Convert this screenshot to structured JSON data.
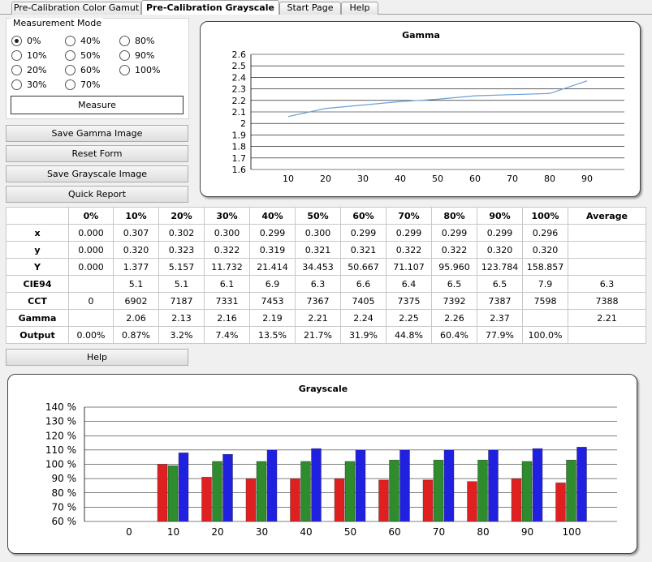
{
  "tabs": [
    "Pre-Calibration Color Gamut",
    "Pre-Calibration Grayscale",
    "Start Page",
    "Help"
  ],
  "active_tab": 1,
  "measurement_mode": {
    "title": "Measurement Mode",
    "options": [
      "0%",
      "10%",
      "20%",
      "30%",
      "40%",
      "50%",
      "60%",
      "70%",
      "80%",
      "90%",
      "100%"
    ],
    "selected": "0%",
    "measure_label": "Measure"
  },
  "buttons": {
    "save_gamma": "Save Gamma Image",
    "reset_form": "Reset Form",
    "save_grayscale": "Save Grayscale Image",
    "quick_report": "Quick Report",
    "help": "Help"
  },
  "table": {
    "columns": [
      "",
      "0%",
      "10%",
      "20%",
      "30%",
      "40%",
      "50%",
      "60%",
      "70%",
      "80%",
      "90%",
      "100%",
      "Average"
    ],
    "rows": [
      [
        "x",
        "0.000",
        "0.307",
        "0.302",
        "0.300",
        "0.299",
        "0.300",
        "0.299",
        "0.299",
        "0.299",
        "0.299",
        "0.296",
        ""
      ],
      [
        "y",
        "0.000",
        "0.320",
        "0.323",
        "0.322",
        "0.319",
        "0.321",
        "0.321",
        "0.322",
        "0.322",
        "0.320",
        "0.320",
        ""
      ],
      [
        "Y",
        "0.000",
        "1.377",
        "5.157",
        "11.732",
        "21.414",
        "34.453",
        "50.667",
        "71.107",
        "95.960",
        "123.784",
        "158.857",
        ""
      ],
      [
        "CIE94",
        "",
        "5.1",
        "5.1",
        "6.1",
        "6.9",
        "6.3",
        "6.6",
        "6.4",
        "6.5",
        "6.5",
        "7.9",
        "6.3"
      ],
      [
        "CCT",
        "0",
        "6902",
        "7187",
        "7331",
        "7453",
        "7367",
        "7405",
        "7375",
        "7392",
        "7387",
        "7598",
        "7388"
      ],
      [
        "Gamma",
        "",
        "2.06",
        "2.13",
        "2.16",
        "2.19",
        "2.21",
        "2.24",
        "2.25",
        "2.26",
        "2.37",
        "",
        "2.21"
      ],
      [
        "Output",
        "0.00%",
        "0.87%",
        "3.2%",
        "7.4%",
        "13.5%",
        "21.7%",
        "31.9%",
        "44.8%",
        "60.4%",
        "77.9%",
        "100.0%",
        ""
      ]
    ]
  },
  "chart_data": [
    {
      "type": "line",
      "title": "Gamma",
      "x": [
        10,
        20,
        30,
        40,
        50,
        60,
        70,
        80,
        90
      ],
      "x_ticks": [
        "10",
        "20",
        "30",
        "40",
        "50",
        "60",
        "70",
        "80",
        "90"
      ],
      "series": [
        {
          "values": [
            2.06,
            2.13,
            2.16,
            2.19,
            2.21,
            2.24,
            2.25,
            2.26,
            2.37
          ],
          "color": "#6a9fd8"
        }
      ],
      "ylim": [
        1.6,
        2.6
      ],
      "y_ticks": [
        "1.6",
        "1.7",
        "1.8",
        "1.9",
        "2",
        "2.1",
        "2.2",
        "2.3",
        "2.4",
        "2.5",
        "2.6"
      ],
      "grid": true
    },
    {
      "type": "bar",
      "title": "Grayscale",
      "categories": [
        "0",
        "10",
        "20",
        "30",
        "40",
        "50",
        "60",
        "70",
        "80",
        "90",
        "100"
      ],
      "series": [
        {
          "color": "#e02020",
          "values": [
            null,
            100,
            91,
            90,
            90,
            90,
            89,
            89,
            88,
            90,
            87
          ]
        },
        {
          "color": "#2e8b2e",
          "values": [
            null,
            99,
            102,
            102,
            102,
            102,
            103,
            103,
            103,
            102,
            103
          ]
        },
        {
          "color": "#2020e0",
          "values": [
            null,
            108,
            107,
            110,
            111,
            110,
            110,
            110,
            110,
            111,
            112
          ]
        }
      ],
      "ylim": [
        60,
        140
      ],
      "y_ticks": [
        "60 %",
        "70 %",
        "80 %",
        "90 %",
        "100 %",
        "110 %",
        "120 %",
        "130 %",
        "140 %"
      ],
      "grid": true
    }
  ]
}
